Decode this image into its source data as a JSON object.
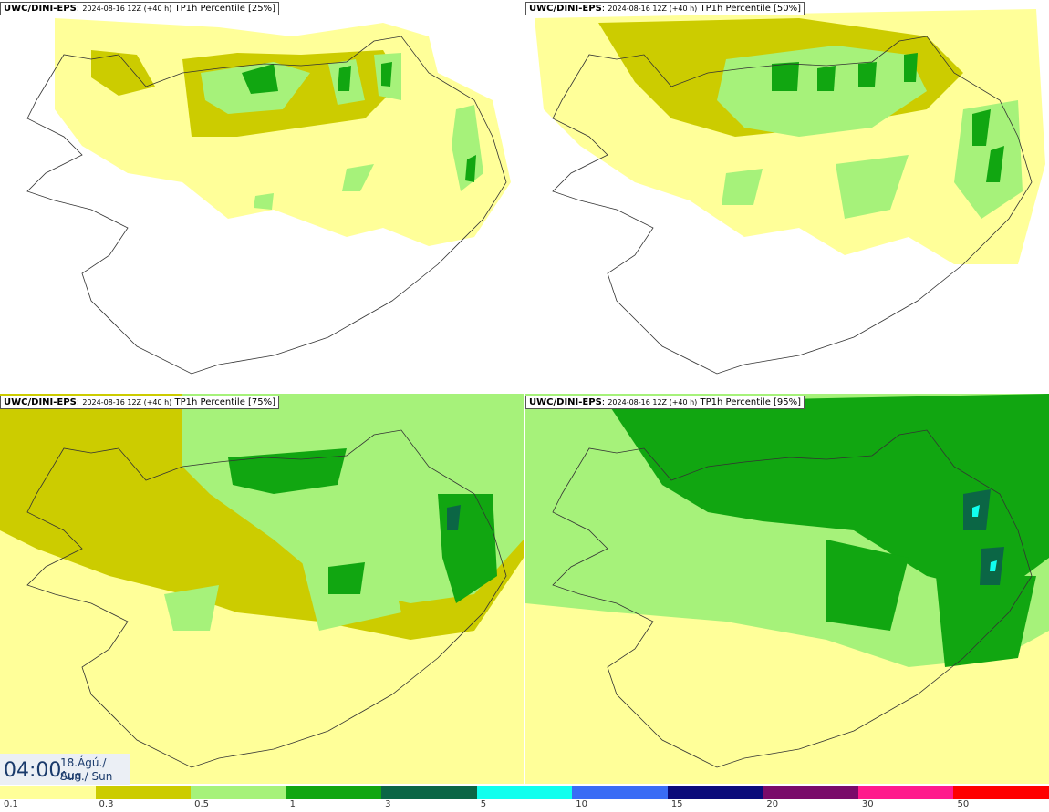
{
  "panels": [
    {
      "model": "UWC/DINI-EPS",
      "run": "2024-08-16 12Z (+40 h)",
      "field": "TP1h Percentile [25%]"
    },
    {
      "model": "UWC/DINI-EPS",
      "run": "2024-08-16 12Z (+40 h)",
      "field": "TP1h Percentile [50%]"
    },
    {
      "model": "UWC/DINI-EPS",
      "run": "2024-08-16 12Z (+40 h)",
      "field": "TP1h Percentile [75%]"
    },
    {
      "model": "UWC/DINI-EPS",
      "run": "2024-08-16 12Z (+40 h)",
      "field": "TP1h Percentile [95%]"
    }
  ],
  "valid_time": {
    "time": "04:00",
    "date": "18.Ágú./ Aug",
    "day": "Sun./ Sun"
  },
  "colorbar": {
    "labels": [
      "0.1",
      "0.3",
      "0.5",
      "1",
      "3",
      "5",
      "10",
      "15",
      "20",
      "30",
      "50"
    ],
    "colors": [
      "#ffff99",
      "#cccc00",
      "#a6f27a",
      "#11a611",
      "#0b6645",
      "#11ffee",
      "#3a6cf5",
      "#0a0a7a",
      "#7a0a6a",
      "#ff1a8c",
      "#ff0000"
    ]
  },
  "colors": {
    "coast": "#333333",
    "text_dark": "#1a3a6b"
  }
}
